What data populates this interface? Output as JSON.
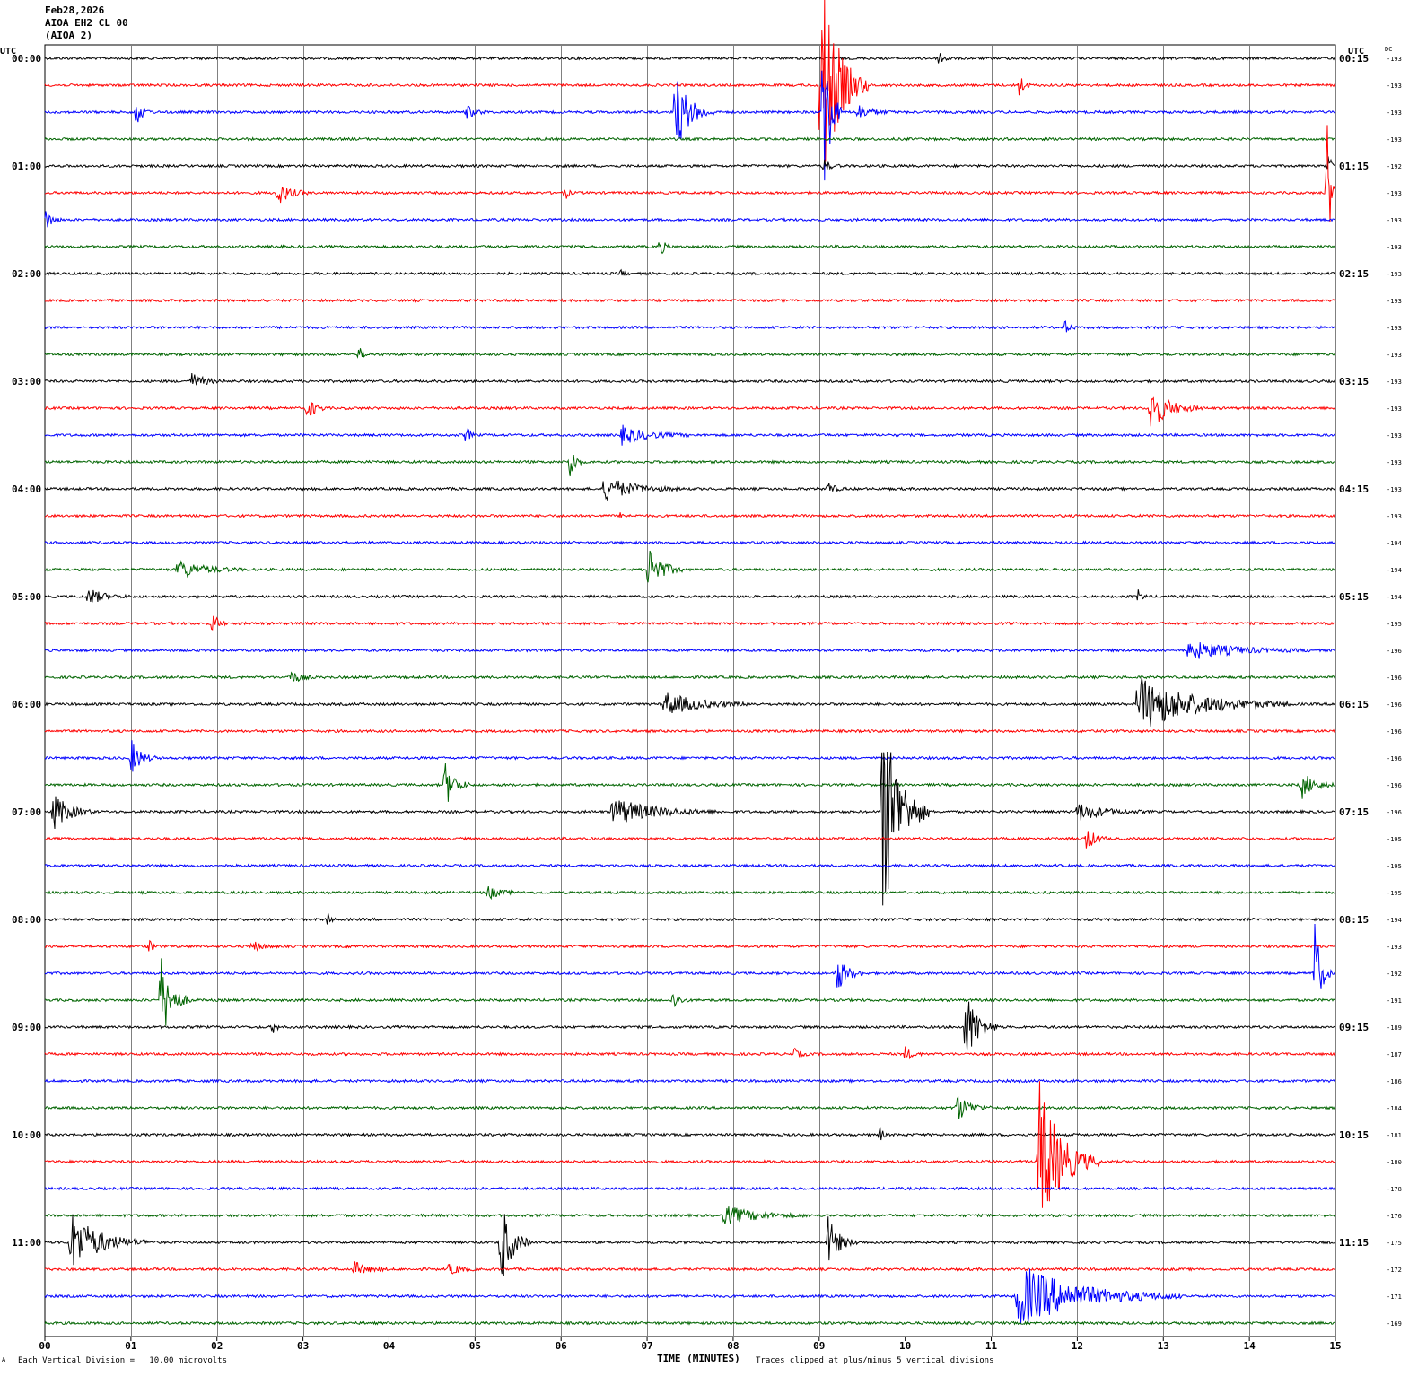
{
  "header": {
    "date": "Feb28,2026",
    "station": "AIOA EH2 CL 00",
    "station_alias": "(AIOA 2)"
  },
  "footer": {
    "marker": "A",
    "scale_note": "Each Vertical Division =   10.00 microvolts",
    "clip_note": "Traces clipped at plus/minus 5 vertical divisions"
  },
  "colors": {
    "black": "#000000",
    "red": "#ff0000",
    "blue": "#0000ff",
    "green": "#006400",
    "grid": "#808080"
  },
  "chart_data": {
    "type": "line",
    "title": "",
    "xlabel": "TIME (MINUTES)",
    "ylabel": "",
    "left_axis_title": "UTC",
    "right_axis_title": "UTC",
    "dc_title": "DC",
    "xlim": [
      0,
      15
    ],
    "x_ticks": [
      "00",
      "01",
      "02",
      "03",
      "04",
      "05",
      "06",
      "07",
      "08",
      "09",
      "10",
      "11",
      "12",
      "13",
      "14",
      "15"
    ],
    "trace_colors_cycle": [
      "black",
      "red",
      "blue",
      "green"
    ],
    "left_labels": [
      "00:00",
      "01:00",
      "02:00",
      "03:00",
      "04:00",
      "05:00",
      "06:00",
      "07:00",
      "08:00",
      "09:00",
      "10:00",
      "11:00"
    ],
    "right_labels": [
      "00:15",
      "01:15",
      "02:15",
      "03:15",
      "04:15",
      "05:15",
      "06:15",
      "07:15",
      "08:15",
      "09:15",
      "10:15",
      "11:15"
    ],
    "dc_values": [
      "-193",
      "-193",
      "-193",
      "-193",
      "-192",
      "-193",
      "-193",
      "-193",
      "-193",
      "-193",
      "-193",
      "-193",
      "-193",
      "-193",
      "-193",
      "-193",
      "-193",
      "-193",
      "-194",
      "-194",
      "-194",
      "-195",
      "-196",
      "-196",
      "-196",
      "-196",
      "-196",
      "-196",
      "-196",
      "-195",
      "-195",
      "-195",
      "-194",
      "-193",
      "-192",
      "-191",
      "-189",
      "-187",
      "-186",
      "-184",
      "-181",
      "-180",
      "-178",
      "-176",
      "-175",
      "-172",
      "-171",
      "-169"
    ],
    "events": [
      {
        "trace": 0,
        "t": 10.4,
        "amp": 0.35,
        "dur": 0.15
      },
      {
        "trace": 1,
        "t": 9.02,
        "amp": 5,
        "dur": 0.55
      },
      {
        "trace": 1,
        "t": 11.32,
        "amp": 0.6,
        "dur": 0.15
      },
      {
        "trace": 2,
        "t": 1.05,
        "amp": 0.7,
        "dur": 0.2
      },
      {
        "trace": 2,
        "t": 4.9,
        "amp": 0.3,
        "dur": 0.25
      },
      {
        "trace": 2,
        "t": 7.33,
        "amp": 1.7,
        "dur": 0.45
      },
      {
        "trace": 2,
        "t": 9.05,
        "amp": 5,
        "dur": 0.2
      },
      {
        "trace": 2,
        "t": 9.45,
        "amp": 0.35,
        "dur": 0.4
      },
      {
        "trace": 4,
        "t": 9.05,
        "amp": 0.3,
        "dur": 0.2
      },
      {
        "trace": 4,
        "t": 14.92,
        "amp": 1.4,
        "dur": 0.05
      },
      {
        "trace": 5,
        "t": 2.7,
        "amp": 0.5,
        "dur": 0.4
      },
      {
        "trace": 5,
        "t": 6.05,
        "amp": 0.3,
        "dur": 0.1
      },
      {
        "trace": 5,
        "t": 14.9,
        "amp": 4,
        "dur": 0.1
      },
      {
        "trace": 6,
        "t": 0,
        "amp": 0.6,
        "dur": 0.2
      },
      {
        "trace": 7,
        "t": 7.15,
        "amp": 0.4,
        "dur": 0.15
      },
      {
        "trace": 8,
        "t": 6.7,
        "amp": 0.2,
        "dur": 0.1
      },
      {
        "trace": 10,
        "t": 11.85,
        "amp": 0.3,
        "dur": 0.15
      },
      {
        "trace": 11,
        "t": 3.65,
        "amp": 0.3,
        "dur": 0.15
      },
      {
        "trace": 12,
        "t": 1.7,
        "amp": 0.35,
        "dur": 0.4
      },
      {
        "trace": 13,
        "t": 3.05,
        "amp": 0.5,
        "dur": 0.25
      },
      {
        "trace": 13,
        "t": 12.85,
        "amp": 0.9,
        "dur": 0.6
      },
      {
        "trace": 14,
        "t": 4.9,
        "amp": 0.45,
        "dur": 0.1
      },
      {
        "trace": 14,
        "t": 6.7,
        "amp": 0.4,
        "dur": 0.8
      },
      {
        "trace": 15,
        "t": 6.1,
        "amp": 1,
        "dur": 0.15
      },
      {
        "trace": 16,
        "t": 6.5,
        "amp": 0.55,
        "dur": 0.9
      },
      {
        "trace": 16,
        "t": 9.1,
        "amp": 0.3,
        "dur": 0.2
      },
      {
        "trace": 17,
        "t": 6.7,
        "amp": 0.2,
        "dur": 0.1
      },
      {
        "trace": 19,
        "t": 1.55,
        "amp": 0.4,
        "dur": 0.8
      },
      {
        "trace": 19,
        "t": 7.02,
        "amp": 1.1,
        "dur": 0.4
      },
      {
        "trace": 20,
        "t": 0.5,
        "amp": 0.35,
        "dur": 0.5
      },
      {
        "trace": 20,
        "t": 12.7,
        "amp": 0.3,
        "dur": 0.15
      },
      {
        "trace": 21,
        "t": 1.95,
        "amp": 0.6,
        "dur": 0.15
      },
      {
        "trace": 22,
        "t": 13.3,
        "amp": 0.4,
        "dur": 1.4
      },
      {
        "trace": 23,
        "t": 2.85,
        "amp": 0.3,
        "dur": 0.3
      },
      {
        "trace": 24,
        "t": 7.2,
        "amp": 0.5,
        "dur": 1.1
      },
      {
        "trace": 24,
        "t": 12.7,
        "amp": 1.2,
        "dur": 1.8
      },
      {
        "trace": 26,
        "t": 1.0,
        "amp": 0.8,
        "dur": 0.3
      },
      {
        "trace": 27,
        "t": 4.65,
        "amp": 1,
        "dur": 0.3
      },
      {
        "trace": 27,
        "t": 14.6,
        "amp": 0.6,
        "dur": 0.4
      },
      {
        "trace": 28,
        "t": 0.1,
        "amp": 0.8,
        "dur": 0.5
      },
      {
        "trace": 28,
        "t": 6.6,
        "amp": 0.6,
        "dur": 1.3
      },
      {
        "trace": 28,
        "t": 9.73,
        "amp": 5,
        "dur": 0.55
      },
      {
        "trace": 28,
        "t": 12.0,
        "amp": 0.4,
        "dur": 0.8
      },
      {
        "trace": 29,
        "t": 12.1,
        "amp": 0.6,
        "dur": 0.25
      },
      {
        "trace": 31,
        "t": 5.15,
        "amp": 0.3,
        "dur": 0.35
      },
      {
        "trace": 32,
        "t": 3.3,
        "amp": 0.6,
        "dur": 0.05
      },
      {
        "trace": 33,
        "t": 1.2,
        "amp": 0.3,
        "dur": 0.15
      },
      {
        "trace": 33,
        "t": 2.4,
        "amp": 0.25,
        "dur": 0.3
      },
      {
        "trace": 34,
        "t": 9.2,
        "amp": 0.8,
        "dur": 0.35
      },
      {
        "trace": 34,
        "t": 14.75,
        "amp": 2.6,
        "dur": 0.2
      },
      {
        "trace": 35,
        "t": 1.35,
        "amp": 1.8,
        "dur": 0.35
      },
      {
        "trace": 35,
        "t": 7.3,
        "amp": 0.4,
        "dur": 0.2
      },
      {
        "trace": 36,
        "t": 2.65,
        "amp": 0.35,
        "dur": 0.1
      },
      {
        "trace": 36,
        "t": 10.7,
        "amp": 1.6,
        "dur": 0.4
      },
      {
        "trace": 37,
        "t": 8.7,
        "amp": 0.25,
        "dur": 0.2
      },
      {
        "trace": 37,
        "t": 10.0,
        "amp": 0.3,
        "dur": 0.2
      },
      {
        "trace": 39,
        "t": 10.6,
        "amp": 0.6,
        "dur": 0.4
      },
      {
        "trace": 40,
        "t": 9.7,
        "amp": 0.4,
        "dur": 0.1
      },
      {
        "trace": 41,
        "t": 11.55,
        "amp": 3.5,
        "dur": 0.7
      },
      {
        "trace": 43,
        "t": 7.9,
        "amp": 0.4,
        "dur": 1.0
      },
      {
        "trace": 44,
        "t": 0.3,
        "amp": 1.3,
        "dur": 0.9
      },
      {
        "trace": 44,
        "t": 5.3,
        "amp": 1.9,
        "dur": 0.35
      },
      {
        "trace": 44,
        "t": 9.1,
        "amp": 1.1,
        "dur": 0.35
      },
      {
        "trace": 45,
        "t": 3.6,
        "amp": 0.3,
        "dur": 0.4
      },
      {
        "trace": 45,
        "t": 4.7,
        "amp": 0.3,
        "dur": 0.3
      },
      {
        "trace": 46,
        "t": 11.3,
        "amp": 1.4,
        "dur": 1.9
      }
    ]
  }
}
